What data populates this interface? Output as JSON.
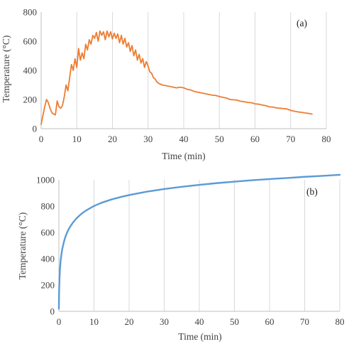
{
  "chart_data": [
    {
      "type": "line",
      "panel_label": "(a)",
      "xlabel": "Time (min)",
      "ylabel": "Temperature (°C)",
      "xlim": [
        0,
        80
      ],
      "ylim": [
        0,
        800
      ],
      "xticks": [
        0,
        10,
        20,
        30,
        40,
        50,
        60,
        70,
        80
      ],
      "yticks": [
        0,
        200,
        400,
        600,
        800
      ],
      "grid": "vertical",
      "series": [
        {
          "color": "#ED7D31",
          "x": [
            0,
            0.5,
            1,
            1.5,
            2,
            2.5,
            3,
            3.5,
            4,
            4.5,
            5,
            5.5,
            6,
            6.5,
            7,
            7.5,
            8,
            8.5,
            9,
            9.5,
            10,
            10.5,
            11,
            11.5,
            12,
            12.5,
            13,
            13.5,
            14,
            14.5,
            15,
            15.5,
            16,
            16.5,
            17,
            17.5,
            18,
            18.5,
            19,
            19.5,
            20,
            20.5,
            21,
            21.5,
            22,
            22.5,
            23,
            23.5,
            24,
            24.5,
            25,
            25.5,
            26,
            26.5,
            27,
            27.5,
            28,
            28.5,
            29,
            29.5,
            30,
            30.5,
            31,
            31.5,
            32,
            32.5,
            33,
            34,
            35,
            36,
            37,
            38,
            39,
            40,
            41,
            42,
            43,
            44,
            45,
            46,
            47,
            48,
            49,
            50,
            51,
            52,
            53,
            54,
            55,
            56,
            57,
            58,
            59,
            60,
            61,
            62,
            63,
            64,
            65,
            66,
            67,
            68,
            69,
            70,
            71,
            72,
            73,
            74,
            75,
            76
          ],
          "y": [
            30,
            90,
            150,
            200,
            180,
            140,
            110,
            100,
            95,
            190,
            150,
            140,
            160,
            220,
            300,
            260,
            350,
            440,
            400,
            480,
            420,
            550,
            470,
            520,
            480,
            580,
            540,
            610,
            580,
            640,
            620,
            660,
            600,
            670,
            640,
            665,
            610,
            670,
            630,
            665,
            615,
            655,
            620,
            650,
            590,
            640,
            580,
            620,
            560,
            590,
            530,
            570,
            500,
            540,
            470,
            510,
            450,
            480,
            420,
            460,
            430,
            390,
            380,
            350,
            340,
            320,
            310,
            300,
            295,
            290,
            285,
            280,
            285,
            280,
            270,
            265,
            255,
            250,
            245,
            240,
            235,
            230,
            228,
            220,
            215,
            210,
            200,
            198,
            195,
            188,
            185,
            180,
            178,
            170,
            168,
            162,
            158,
            150,
            148,
            142,
            140,
            138,
            135,
            125,
            120,
            115,
            112,
            108,
            105,
            100
          ]
        }
      ]
    },
    {
      "type": "line",
      "panel_label": "(b)",
      "xlabel": "Time (min)",
      "ylabel": "Temperature (°C)",
      "xlim": [
        0,
        80
      ],
      "ylim": [
        0,
        1000
      ],
      "xticks": [
        0,
        10,
        20,
        30,
        40,
        50,
        60,
        70,
        80
      ],
      "yticks": [
        0,
        200,
        400,
        600,
        800,
        1000
      ],
      "grid": "vertical",
      "series": [
        {
          "color": "#5B9BD5",
          "x": [
            0,
            0.05,
            0.1,
            0.2,
            0.3,
            0.5,
            0.75,
            1,
            1.5,
            2,
            2.5,
            3,
            4,
            5,
            6,
            7,
            8,
            10,
            12,
            15,
            18,
            20,
            25,
            30,
            35,
            40,
            45,
            50,
            55,
            60,
            65,
            70,
            75,
            80
          ],
          "y": [
            20,
            133,
            185,
            261,
            316,
            384,
            438,
            479,
            535,
            577,
            609,
            635,
            675,
            707,
            732,
            753,
            771,
            801,
            824,
            851,
            872,
            884,
            910,
            930,
            947,
            962,
            975,
            986,
            997,
            1006,
            1014,
            1023,
            1030,
            1038
          ]
        }
      ]
    }
  ]
}
